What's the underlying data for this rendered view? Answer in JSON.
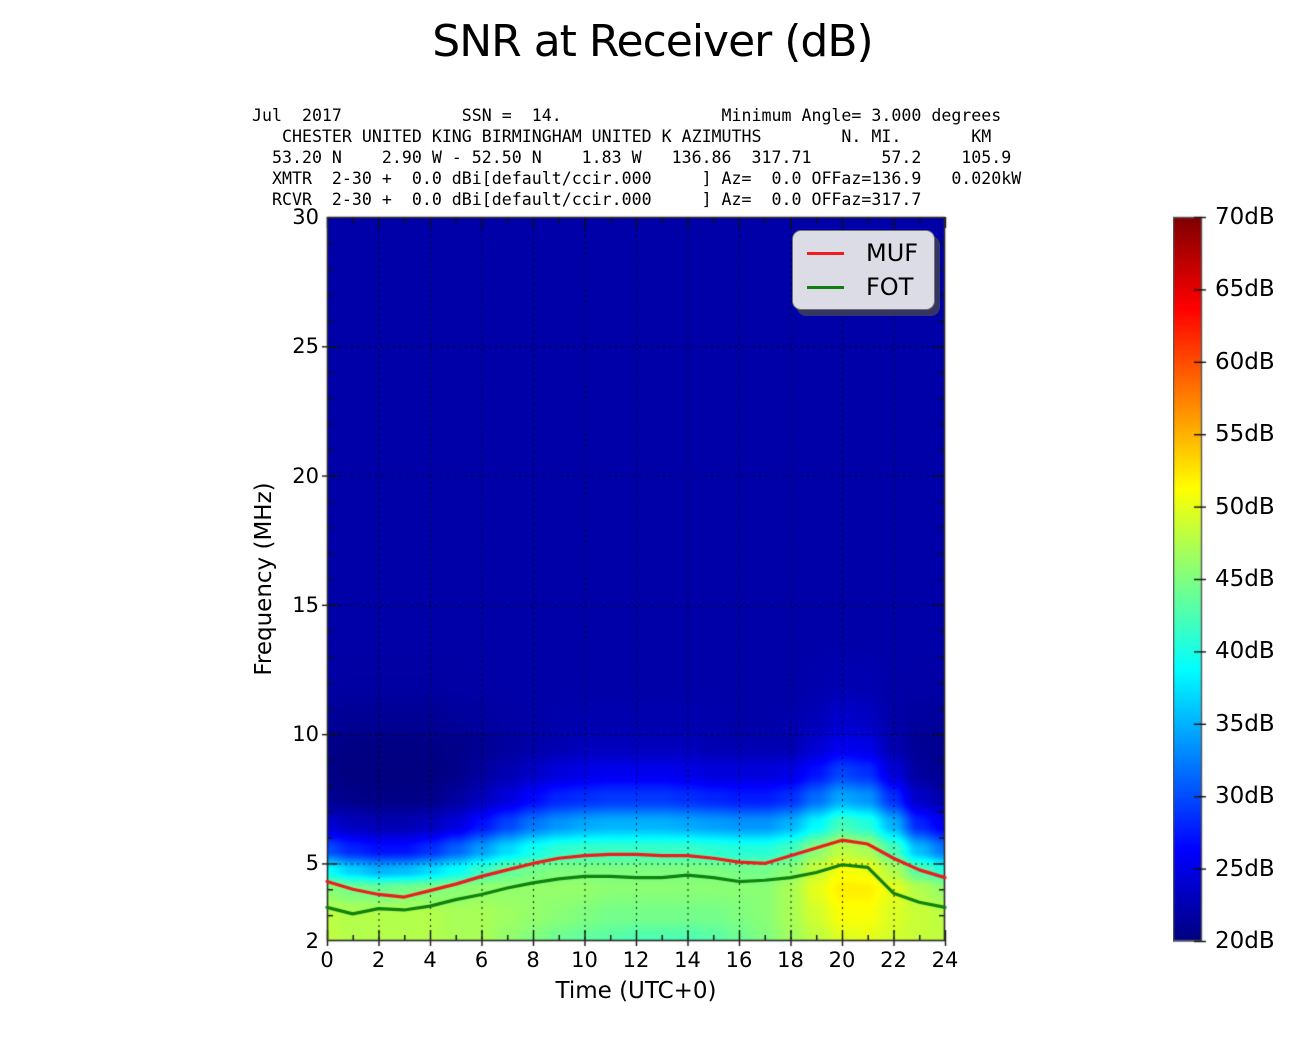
{
  "title": "SNR at Receiver (dB)",
  "header_text": "Jul  2017            SSN =  14.                Minimum Angle= 3.000 degrees\n   CHESTER UNITED KING BIRMINGHAM UNITED K AZIMUTHS        N. MI.       KM\n  53.20 N    2.90 W - 52.50 N    1.83 W   136.86  317.71       57.2    105.9\n  XMTR  2-30 +  0.0 dBi[default/ccir.000     ] Az=  0.0 OFFaz=136.9   0.020kW\n  RCVR  2-30 +  0.0 dBi[default/ccir.000     ] Az=  0.0 OFFaz=317.7",
  "legend": {
    "items": [
      {
        "label": "MUF",
        "color": "#ee1c1c"
      },
      {
        "label": "FOT",
        "color": "#0f800f"
      }
    ]
  },
  "axes": {
    "x": {
      "label": "Time (UTC+0)",
      "min": 0,
      "max": 24,
      "ticks": [
        {
          "v": 0,
          "label": "0"
        },
        {
          "v": 2,
          "label": "2"
        },
        {
          "v": 4,
          "label": "4"
        },
        {
          "v": 6,
          "label": "6"
        },
        {
          "v": 8,
          "label": "8"
        },
        {
          "v": 10,
          "label": "10"
        },
        {
          "v": 12,
          "label": "12"
        },
        {
          "v": 14,
          "label": "14"
        },
        {
          "v": 16,
          "label": "16"
        },
        {
          "v": 18,
          "label": "18"
        },
        {
          "v": 20,
          "label": "20"
        },
        {
          "v": 22,
          "label": "22"
        },
        {
          "v": 24,
          "label": "24"
        }
      ]
    },
    "y": {
      "label": "Frequency (MHz)",
      "min": 2,
      "max": 30,
      "ticks": [
        {
          "v": 30,
          "label": "30"
        },
        {
          "v": 25,
          "label": "25"
        },
        {
          "v": 20,
          "label": "20"
        },
        {
          "v": 15,
          "label": "15"
        },
        {
          "v": 10,
          "label": "10"
        },
        {
          "v": 5,
          "label": "5"
        },
        {
          "v": 2,
          "label": "2"
        }
      ]
    }
  },
  "colorbar": {
    "min": 20,
    "max": 70,
    "colormap": "jet",
    "ticks": [
      {
        "v": 70,
        "label": "70dB"
      },
      {
        "v": 65,
        "label": "65dB"
      },
      {
        "v": 60,
        "label": "60dB"
      },
      {
        "v": 55,
        "label": "55dB"
      },
      {
        "v": 50,
        "label": "50dB"
      },
      {
        "v": 45,
        "label": "45dB"
      },
      {
        "v": 40,
        "label": "40dB"
      },
      {
        "v": 35,
        "label": "35dB"
      },
      {
        "v": 30,
        "label": "30dB"
      },
      {
        "v": 25,
        "label": "25dB"
      },
      {
        "v": 20,
        "label": "20dB"
      }
    ]
  },
  "chart_data": {
    "type": "heatmap",
    "title": "SNR at Receiver (dB)",
    "xlabel": "Time (UTC+0)",
    "ylabel": "Frequency (MHz)",
    "xlim": [
      0,
      24
    ],
    "ylim": [
      2,
      30
    ],
    "value_unit": "dB",
    "value_range": [
      20,
      70
    ],
    "grid_on": true,
    "x_hours": [
      0,
      1,
      2,
      3,
      4,
      5,
      6,
      7,
      8,
      9,
      10,
      11,
      12,
      13,
      14,
      15,
      16,
      17,
      18,
      19,
      20,
      21,
      22,
      23,
      24
    ],
    "freq_rows": [
      2,
      3,
      4,
      4.7,
      5.5,
      6.5,
      7.5,
      8.5,
      9.5,
      10.5,
      12,
      14,
      30
    ],
    "snr_grid": [
      [
        48,
        47.5,
        47.5,
        47.5,
        47.5,
        47,
        47,
        46,
        45,
        44,
        43.5,
        43,
        42.5,
        42.5,
        42.5,
        43,
        44,
        45,
        46.5,
        48,
        49.5,
        50,
        49,
        48.5,
        48
      ],
      [
        48,
        47.5,
        47.5,
        47.5,
        47.5,
        47,
        47,
        46.5,
        46,
        45.5,
        45,
        44.5,
        44.5,
        44.5,
        44.5,
        44.5,
        45,
        45.5,
        47,
        49,
        51,
        51,
        49.5,
        48.5,
        48
      ],
      [
        45.5,
        44.5,
        44,
        44.5,
        45,
        45.5,
        46,
        46,
        46,
        46,
        46,
        45.5,
        45.5,
        45.5,
        45.5,
        45.5,
        45.5,
        45.5,
        47,
        50,
        52,
        52,
        50,
        47.5,
        46
      ],
      [
        39,
        36.5,
        35,
        35.5,
        37,
        39,
        41.5,
        43.5,
        44.5,
        45,
        45,
        45,
        45,
        45,
        45,
        45,
        44.5,
        44.5,
        45.5,
        48.5,
        51,
        50.5,
        47.5,
        43,
        40.5
      ],
      [
        30,
        28,
        27,
        27,
        28.5,
        31,
        34,
        37,
        39.5,
        41,
        41.5,
        41.5,
        41.5,
        41.5,
        41.5,
        41,
        40.5,
        40.5,
        42,
        45.5,
        48,
        47,
        42.5,
        35.5,
        32
      ],
      [
        24,
        23,
        22.5,
        22.5,
        23,
        24.5,
        27,
        29.5,
        32,
        33.5,
        34.5,
        35,
        35,
        35,
        34.5,
        34,
        33.5,
        33.5,
        35,
        38.5,
        42,
        40.5,
        35,
        28,
        25.5
      ],
      [
        21,
        20.5,
        20.3,
        20.3,
        20.5,
        21.5,
        23,
        24.5,
        26.5,
        28,
        28.5,
        29,
        29,
        29,
        28.5,
        28,
        27.5,
        27.5,
        28.5,
        31.5,
        34.5,
        33.5,
        28.5,
        23.5,
        22
      ],
      [
        20.3,
        20,
        20,
        20,
        20,
        20.5,
        21.5,
        22.5,
        23.5,
        24.5,
        25,
        25.5,
        25.5,
        25.5,
        25,
        24.5,
        24.5,
        24.5,
        25,
        27,
        29.5,
        28.5,
        24.5,
        21.5,
        20.8
      ],
      [
        20.5,
        20.2,
        20.2,
        20.2,
        20.3,
        20.5,
        21,
        21.5,
        22,
        22.5,
        23,
        23,
        23,
        23,
        23,
        22.5,
        22.5,
        22.5,
        22.5,
        24,
        25.5,
        25,
        22.5,
        21,
        20.8
      ],
      [
        21.3,
        21,
        21,
        21,
        21,
        21.3,
        21.5,
        21.8,
        22,
        22.2,
        22.3,
        22.3,
        22.3,
        22.3,
        22.3,
        22.2,
        22,
        22,
        22.2,
        22.8,
        23.8,
        23.4,
        22,
        21.5,
        21.4
      ],
      [
        21.8,
        21.7,
        21.7,
        21.7,
        21.7,
        21.8,
        21.9,
        22,
        22,
        22,
        22,
        22,
        22,
        22,
        22,
        22,
        22,
        22,
        22,
        22.2,
        22.5,
        22.4,
        22,
        21.9,
        21.8
      ],
      [
        22,
        22,
        22,
        22,
        22,
        22,
        22,
        22,
        22,
        22,
        22,
        22,
        22,
        22,
        22,
        22,
        22,
        22,
        22,
        22,
        22,
        22,
        22,
        22,
        22
      ],
      [
        22,
        22,
        22,
        22,
        22,
        22,
        22,
        22,
        22,
        22,
        22,
        22,
        22,
        22,
        22,
        22,
        22,
        22,
        22,
        22,
        22,
        22,
        22,
        22,
        22
      ]
    ],
    "series": [
      {
        "name": "MUF",
        "color": "#ee1c1c",
        "values": [
          4.3,
          4.0,
          3.8,
          3.7,
          3.95,
          4.2,
          4.5,
          4.75,
          5.0,
          5.2,
          5.3,
          5.35,
          5.35,
          5.3,
          5.3,
          5.2,
          5.05,
          5.0,
          5.3,
          5.6,
          5.9,
          5.75,
          5.2,
          4.75,
          4.45
        ]
      },
      {
        "name": "FOT",
        "color": "#0f800f",
        "values": [
          3.3,
          3.05,
          3.25,
          3.2,
          3.35,
          3.6,
          3.8,
          4.05,
          4.25,
          4.4,
          4.5,
          4.5,
          4.45,
          4.45,
          4.55,
          4.45,
          4.3,
          4.35,
          4.45,
          4.65,
          4.95,
          4.85,
          3.85,
          3.5,
          3.3
        ]
      }
    ]
  }
}
